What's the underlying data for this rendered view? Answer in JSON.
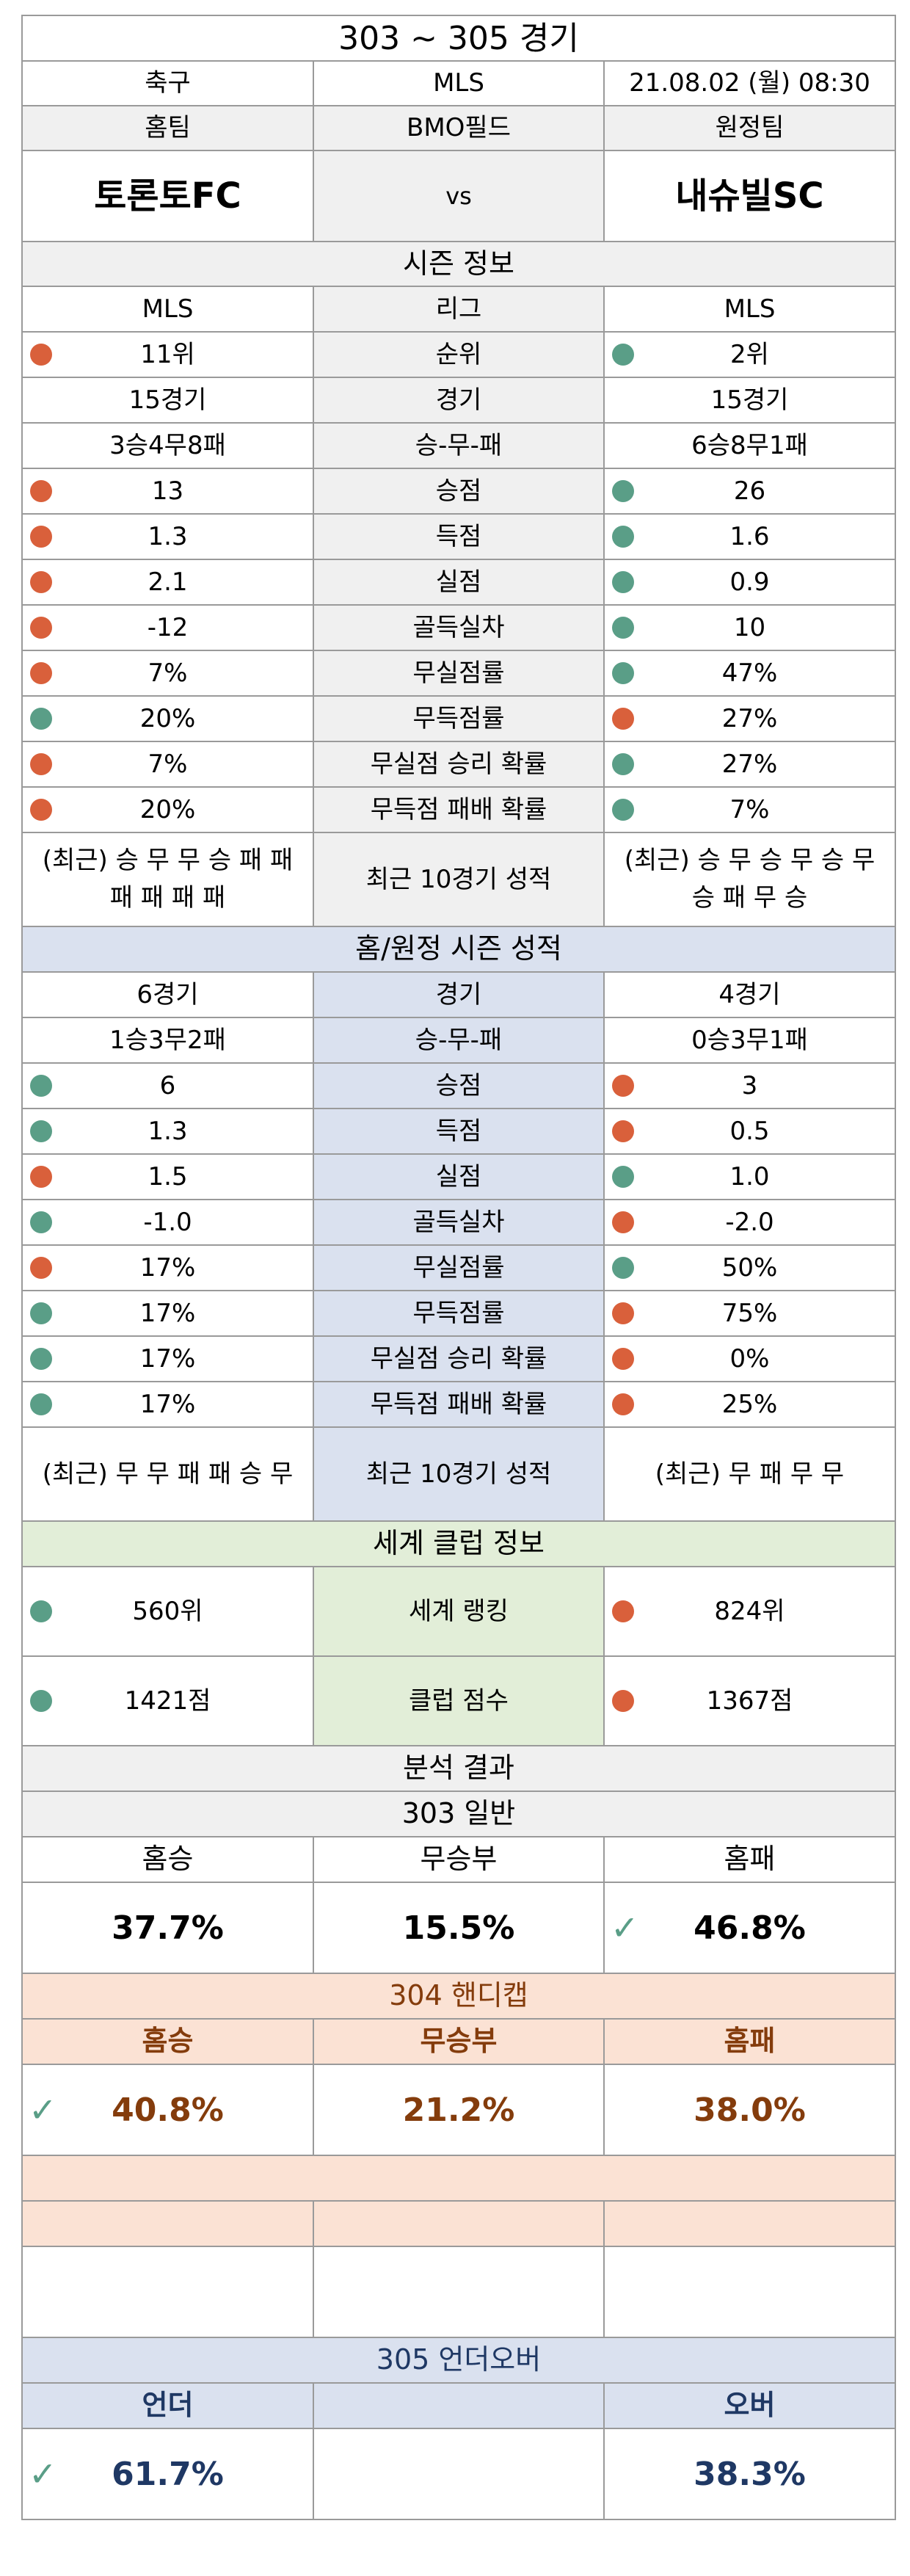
{
  "header": {
    "title": "303 ~ 305 경기",
    "sport": "축구",
    "league": "MLS",
    "datetime": "21.08.02 (월) 08:30",
    "home_label": "홈팀",
    "venue": "BMO필드",
    "away_label": "원정팀",
    "home_team": "토론토FC",
    "vs": "vs",
    "away_team": "내슈빌SC"
  },
  "season": {
    "title": "시즌 정보",
    "rows": [
      {
        "home": "MLS",
        "label": "리그",
        "away": "MLS",
        "home_dot": "",
        "away_dot": ""
      },
      {
        "home": "11위",
        "label": "순위",
        "away": "2위",
        "home_dot": "red",
        "away_dot": "green"
      },
      {
        "home": "15경기",
        "label": "경기",
        "away": "15경기",
        "home_dot": "",
        "away_dot": ""
      },
      {
        "home": "3승4무8패",
        "label": "승-무-패",
        "away": "6승8무1패",
        "home_dot": "",
        "away_dot": ""
      },
      {
        "home": "13",
        "label": "승점",
        "away": "26",
        "home_dot": "red",
        "away_dot": "green"
      },
      {
        "home": "1.3",
        "label": "득점",
        "away": "1.6",
        "home_dot": "red",
        "away_dot": "green"
      },
      {
        "home": "2.1",
        "label": "실점",
        "away": "0.9",
        "home_dot": "red",
        "away_dot": "green"
      },
      {
        "home": "-12",
        "label": "골득실차",
        "away": "10",
        "home_dot": "red",
        "away_dot": "green"
      },
      {
        "home": "7%",
        "label": "무실점률",
        "away": "47%",
        "home_dot": "red",
        "away_dot": "green"
      },
      {
        "home": "20%",
        "label": "무득점률",
        "away": "27%",
        "home_dot": "green",
        "away_dot": "red"
      },
      {
        "home": "7%",
        "label": "무실점 승리 확률",
        "away": "27%",
        "home_dot": "red",
        "away_dot": "green"
      },
      {
        "home": "20%",
        "label": "무득점 패배 확률",
        "away": "7%",
        "home_dot": "red",
        "away_dot": "green"
      }
    ],
    "recent": {
      "home": "(최근) 승 무 무 승 패 패 패 패 패 패",
      "label": "최근 10경기 성적",
      "away": "(최근) 승 무 승 무 승 무 승 패 무 승"
    }
  },
  "homeaway": {
    "title": "홈/원정 시즌 성적",
    "rows": [
      {
        "home": "6경기",
        "label": "경기",
        "away": "4경기",
        "home_dot": "",
        "away_dot": ""
      },
      {
        "home": "1승3무2패",
        "label": "승-무-패",
        "away": "0승3무1패",
        "home_dot": "",
        "away_dot": ""
      },
      {
        "home": "6",
        "label": "승점",
        "away": "3",
        "home_dot": "green",
        "away_dot": "red"
      },
      {
        "home": "1.3",
        "label": "득점",
        "away": "0.5",
        "home_dot": "green",
        "away_dot": "red"
      },
      {
        "home": "1.5",
        "label": "실점",
        "away": "1.0",
        "home_dot": "red",
        "away_dot": "green"
      },
      {
        "home": "-1.0",
        "label": "골득실차",
        "away": "-2.0",
        "home_dot": "green",
        "away_dot": "red"
      },
      {
        "home": "17%",
        "label": "무실점률",
        "away": "50%",
        "home_dot": "red",
        "away_dot": "green"
      },
      {
        "home": "17%",
        "label": "무득점률",
        "away": "75%",
        "home_dot": "green",
        "away_dot": "red"
      },
      {
        "home": "17%",
        "label": "무실점 승리 확률",
        "away": "0%",
        "home_dot": "green",
        "away_dot": "red"
      },
      {
        "home": "17%",
        "label": "무득점 패배 확률",
        "away": "25%",
        "home_dot": "green",
        "away_dot": "red"
      }
    ],
    "recent": {
      "home": "(최근) 무 무 패 패 승 무",
      "label": "최근 10경기 성적",
      "away": "(최근) 무 패 무 무"
    }
  },
  "world": {
    "title": "세계 클럽 정보",
    "rows": [
      {
        "home": "560위",
        "label": "세계 랭킹",
        "away": "824위",
        "home_dot": "green",
        "away_dot": "red"
      },
      {
        "home": "1421점",
        "label": "클럽 점수",
        "away": "1367점",
        "home_dot": "green",
        "away_dot": "red"
      }
    ]
  },
  "analysis": {
    "title": "분석 결과",
    "general": {
      "title": "303 일반",
      "home_win": "홈승",
      "draw": "무승부",
      "home_loss": "홈패",
      "home_win_pct": "37.7%",
      "draw_pct": "15.5%",
      "home_loss_pct": "46.8%",
      "check": "✓"
    },
    "handicap": {
      "title": "304 핸디캡",
      "home_win": "홈승",
      "draw": "무승부",
      "home_loss": "홈패",
      "home_win_pct": "40.8%",
      "draw_pct": "21.2%",
      "home_loss_pct": "38.0%",
      "check": "✓"
    },
    "underover": {
      "title": "305 언더오버",
      "under": "언더",
      "over": "오버",
      "under_pct": "61.7%",
      "over_pct": "38.3%",
      "check": "✓"
    }
  },
  "colors": {
    "dot_red": "#d9603b",
    "dot_green": "#5a9e87",
    "handicap_text": "#843c0c",
    "underover_text": "#1f3864",
    "blue_band": "#dae1ef",
    "green_band": "#e2eed8",
    "peach_band": "#fbe2d4"
  }
}
